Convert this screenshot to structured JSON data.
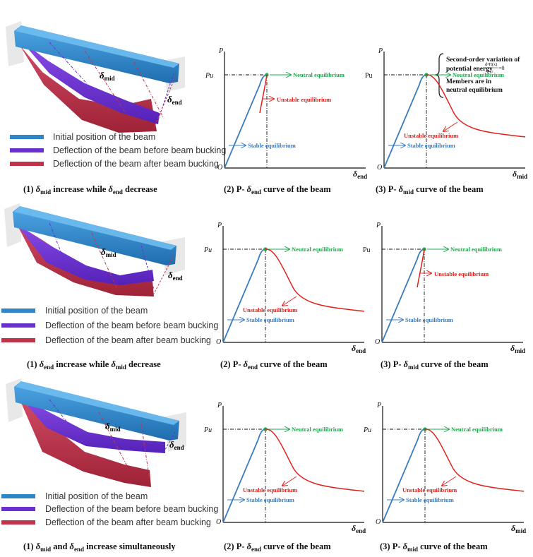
{
  "colors": {
    "initial": "#2E86C7",
    "before": "#6A2FD0",
    "after": "#C2334A",
    "stable": "#3A7CC0",
    "neutral": "#1BAA4C",
    "unstable": "#E0201B"
  },
  "legend": {
    "initial": "Initial position of the beam",
    "before": "Deflection of the beam before beam bucking",
    "after": "Deflection of the beam after beam bucking"
  },
  "rows": [
    {
      "caption1": {
        "pre": "(1) ",
        "s1": "δ",
        "sub1": "mid",
        "mid": " increase while ",
        "s2": "δ",
        "sub2": "end",
        "post": " decrease"
      },
      "caption2": {
        "pre": "(2) P- ",
        "s": "δ",
        "sub": "end",
        "post": " curve of the beam"
      },
      "caption3": {
        "pre": "(3) P- ",
        "s": "δ",
        "sub": "mid",
        "post": " curve of the beam"
      }
    },
    {
      "caption1": {
        "pre": "(1) ",
        "s1": "δ",
        "sub1": "end",
        "mid": " increase while ",
        "s2": "δ",
        "sub2": "mid",
        "post": " decrease"
      },
      "caption2": {
        "pre": "(2) P- ",
        "s": "δ",
        "sub": "end",
        "post": " curve of the beam"
      },
      "caption3": {
        "pre": "(3) P- ",
        "s": "δ",
        "sub": "mid",
        "post": " curve of the beam"
      }
    },
    {
      "caption1": {
        "pre": "(1) ",
        "s1": "δ",
        "sub1": "mid",
        "mid": " and ",
        "s2": "δ",
        "sub2": "end",
        "post": " increase simultaneously"
      },
      "caption2": {
        "pre": "(2) P- ",
        "s": "δ",
        "sub": "end",
        "post": " curve of the beam"
      },
      "caption3": {
        "pre": "(3) P- ",
        "s": "δ",
        "sub": "mid",
        "post": " curve of the beam"
      }
    }
  ],
  "beam_labels": {
    "delta": "δ",
    "mid": "mid",
    "end": "end"
  },
  "plot_text": {
    "p": "P",
    "origin": "O",
    "pu_italic": "Pu",
    "pu_upright": "Pu",
    "neutral": "Neutral equilibrium",
    "unstable": "Unstable equilibrium",
    "stable": "Stable equilibrium",
    "delta": "δ",
    "x_end": "end",
    "x_mid": "mid"
  },
  "annotation": {
    "line1": "Second-order variation of",
    "line2": "potential energy",
    "formula_num": "d²Π(x)",
    "formula_den": "dx²",
    "formula_eq": "=0",
    "line3": "Members are in",
    "line4": "neutral equilibrium"
  },
  "plots": [
    {
      "row": 0,
      "col": 1,
      "curve": "upturn",
      "axis": "end",
      "pu": "italic"
    },
    {
      "row": 0,
      "col": 2,
      "curve": "decay",
      "axis": "mid",
      "pu": "upright"
    },
    {
      "row": 1,
      "col": 1,
      "curve": "decay",
      "axis": "end",
      "pu": "italic"
    },
    {
      "row": 1,
      "col": 2,
      "curve": "upturn",
      "axis": "mid",
      "pu": "upright"
    },
    {
      "row": 2,
      "col": 1,
      "curve": "decay",
      "axis": "end",
      "pu": "italic"
    },
    {
      "row": 2,
      "col": 2,
      "curve": "decay",
      "axis": "mid",
      "pu": "italic"
    }
  ]
}
